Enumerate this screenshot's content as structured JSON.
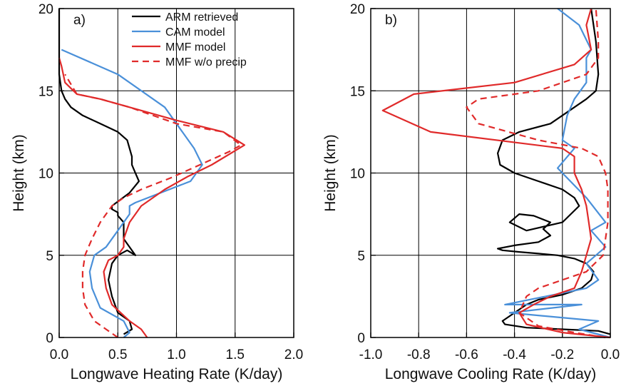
{
  "chart_data": [
    {
      "type": "line",
      "panel_label": "a)",
      "xlabel": "Longwave Heating Rate (K/day)",
      "ylabel": "Height (km)",
      "xlim": [
        0,
        2
      ],
      "ylim": [
        0,
        20
      ],
      "xticks": [
        0,
        0.5,
        1,
        1.5,
        2
      ],
      "xtick_labels": [
        "0.0",
        "0.5",
        "1.0",
        "1.5",
        "2.0"
      ],
      "yticks": [
        0,
        5,
        10,
        15,
        20
      ],
      "ytick_labels": [
        "0",
        "5",
        "10",
        "15",
        "20"
      ],
      "grid": "lines at each tick",
      "legend_position": "top-right",
      "series": [
        {
          "name": "ARM retrieved",
          "color": "#000000",
          "dash": "solid",
          "x": [
            0.55,
            0.62,
            0.6,
            0.5,
            0.45,
            0.42,
            0.45,
            0.5,
            0.58,
            0.65,
            0.55,
            0.55,
            0.5,
            0.5,
            0.45,
            0.45,
            0.6,
            0.68,
            0.65,
            0.62,
            0.62,
            0.6,
            0.58,
            0.5,
            0.35,
            0.2,
            0.1,
            0.05,
            0.02,
            0.0,
            0.0
          ],
          "y": [
            0.2,
            0.5,
            1.0,
            1.5,
            2.5,
            3.5,
            4.5,
            5.0,
            5.3,
            5.0,
            6.0,
            7.0,
            7.4,
            7.6,
            7.8,
            8.0,
            8.8,
            9.5,
            10.0,
            10.5,
            11.0,
            11.5,
            12.0,
            12.5,
            13.0,
            13.5,
            14.0,
            14.5,
            15.0,
            16.0,
            20.0
          ]
        },
        {
          "name": "CAM model",
          "color": "#4a90d9",
          "dash": "solid",
          "x": [
            0.55,
            0.6,
            0.55,
            0.35,
            0.28,
            0.26,
            0.3,
            0.4,
            0.5,
            0.55,
            0.6,
            0.6,
            0.65,
            1.12,
            1.22,
            1.15,
            1.0,
            0.9,
            0.5,
            0.02
          ],
          "y": [
            0.0,
            0.3,
            1.0,
            1.8,
            3.0,
            4.0,
            5.0,
            5.5,
            6.5,
            7.0,
            7.5,
            8.0,
            8.2,
            9.5,
            10.5,
            11.5,
            13.0,
            14.0,
            16.0,
            17.5
          ]
        },
        {
          "name": "MMF model",
          "color": "#e02a2a",
          "dash": "solid",
          "x": [
            0.75,
            0.7,
            0.6,
            0.45,
            0.4,
            0.38,
            0.42,
            0.5,
            0.55,
            0.55,
            0.6,
            0.7,
            0.9,
            1.1,
            1.3,
            1.58,
            1.4,
            1.0,
            0.6,
            0.35,
            0.15,
            0.05,
            0.02,
            0.0
          ],
          "y": [
            0.0,
            0.5,
            1.0,
            2.0,
            3.0,
            4.0,
            4.7,
            5.0,
            5.5,
            6.0,
            7.0,
            8.0,
            9.0,
            9.8,
            10.5,
            11.7,
            12.5,
            13.2,
            14.0,
            14.5,
            14.8,
            15.5,
            16.5,
            17.0
          ]
        },
        {
          "name": "MMF w/o precip",
          "color": "#e02a2a",
          "dash": "dashed",
          "x": [
            0.5,
            0.4,
            0.3,
            0.22,
            0.2,
            0.2,
            0.22,
            0.28,
            0.35,
            0.45,
            0.55,
            0.7,
            0.95,
            1.2,
            1.45,
            1.55,
            1.4,
            1.0,
            0.6,
            0.35,
            0.15,
            0.05
          ],
          "y": [
            0.0,
            0.5,
            1.0,
            2.0,
            3.0,
            4.0,
            5.0,
            6.0,
            7.0,
            8.0,
            8.5,
            9.0,
            9.7,
            10.5,
            11.3,
            11.7,
            12.5,
            13.0,
            14.0,
            14.5,
            14.8,
            16.0
          ]
        }
      ]
    },
    {
      "type": "line",
      "panel_label": "b)",
      "xlabel": "Longwave Cooling Rate (K/day)",
      "ylabel": "Height (km)",
      "xlim": [
        -1,
        0
      ],
      "ylim": [
        0,
        20
      ],
      "xticks": [
        -1,
        -0.8,
        -0.6,
        -0.4,
        -0.2,
        0
      ],
      "xtick_labels": [
        "-1.0",
        "-0.8",
        "-0.6",
        "-0.4",
        "-0.2",
        "0.0"
      ],
      "yticks": [
        0,
        5,
        10,
        15,
        20
      ],
      "ytick_labels": [
        "0",
        "5",
        "10",
        "15",
        "20"
      ],
      "grid": "lines at each tick",
      "series": [
        {
          "name": "ARM retrieved",
          "color": "#000000",
          "dash": "solid",
          "x": [
            0.0,
            -0.05,
            -0.2,
            -0.35,
            -0.44,
            -0.45,
            -0.4,
            -0.35,
            -0.3,
            -0.2,
            -0.12,
            -0.08,
            -0.07,
            -0.1,
            -0.15,
            -0.22,
            -0.3,
            -0.38,
            -0.45,
            -0.47,
            -0.4,
            -0.3,
            -0.25,
            -0.28,
            -0.25,
            -0.32,
            -0.38,
            -0.42,
            -0.35,
            -0.2,
            -0.13,
            -0.15,
            -0.2,
            -0.3,
            -0.4,
            -0.46,
            -0.47,
            -0.45,
            -0.38,
            -0.25,
            -0.2,
            -0.15,
            -0.1,
            -0.06,
            -0.05,
            -0.06,
            -0.08
          ],
          "y": [
            0.2,
            0.4,
            0.5,
            0.6,
            0.8,
            1.0,
            1.5,
            2.0,
            2.3,
            2.6,
            3.0,
            3.5,
            4.0,
            4.5,
            4.8,
            5.0,
            5.1,
            5.2,
            5.3,
            5.4,
            5.6,
            5.8,
            6.2,
            6.6,
            7.0,
            7.4,
            7.5,
            7.0,
            6.5,
            7.0,
            8.0,
            8.5,
            9.0,
            9.5,
            10.0,
            10.5,
            11.2,
            12.0,
            12.5,
            13.0,
            13.5,
            14.0,
            14.5,
            15.0,
            16.0,
            18.0,
            20.0
          ]
        },
        {
          "name": "CAM model",
          "color": "#4a90d9",
          "dash": "solid",
          "x": [
            0.0,
            -0.13,
            -0.05,
            -0.42,
            -0.12,
            -0.44,
            -0.1,
            -0.05,
            -0.1,
            -0.02,
            -0.08,
            -0.02,
            -0.1,
            -0.22,
            -0.15,
            -0.2,
            -0.18,
            -0.15,
            -0.1,
            -0.1,
            -0.08,
            -0.13,
            -0.22
          ],
          "y": [
            0.0,
            0.5,
            1.0,
            1.5,
            2.0,
            2.0,
            3.0,
            3.5,
            4.5,
            5.5,
            6.5,
            7.0,
            8.5,
            10.3,
            11.5,
            12.0,
            13.5,
            14.5,
            15.5,
            17.0,
            17.5,
            19.0,
            20.0
          ]
        },
        {
          "name": "MMF model",
          "color": "#e02a2a",
          "dash": "solid",
          "x": [
            0.0,
            -0.2,
            -0.35,
            -0.38,
            -0.32,
            -0.25,
            -0.15,
            -0.12,
            -0.1,
            -0.08,
            -0.09,
            -0.1,
            -0.12,
            -0.15,
            -0.15,
            -0.2,
            -0.75,
            -0.95,
            -0.82,
            -0.4,
            -0.15,
            -0.08,
            -0.1,
            -0.08
          ],
          "y": [
            0.0,
            0.3,
            0.8,
            1.5,
            2.0,
            2.5,
            3.0,
            4.0,
            5.0,
            6.0,
            7.0,
            8.0,
            9.0,
            10.0,
            11.0,
            11.5,
            12.5,
            13.8,
            14.8,
            15.5,
            16.6,
            17.5,
            19.0,
            20.0
          ]
        },
        {
          "name": "MMF w/o precip",
          "color": "#e02a2a",
          "dash": "dashed",
          "x": [
            -0.02,
            -0.15,
            -0.3,
            -0.38,
            -0.35,
            -0.3,
            -0.2,
            -0.1,
            -0.03,
            -0.01,
            -0.01,
            -0.02,
            -0.05,
            -0.12,
            -0.3,
            -0.55,
            -0.6,
            -0.55,
            -0.3,
            -0.1,
            -0.05,
            -0.05,
            -0.06
          ],
          "y": [
            0.0,
            0.3,
            0.7,
            1.5,
            2.5,
            3.0,
            3.5,
            4.0,
            5.0,
            7.0,
            9.0,
            10.0,
            11.0,
            11.5,
            12.0,
            13.0,
            14.0,
            14.5,
            15.0,
            16.0,
            17.0,
            18.0,
            20.0
          ]
        }
      ]
    }
  ]
}
